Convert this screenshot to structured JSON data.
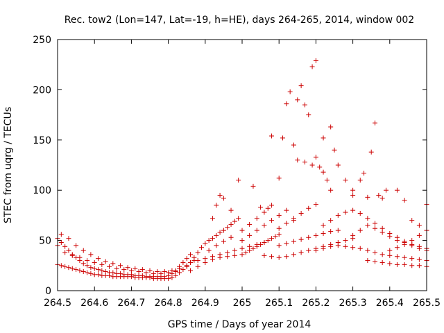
{
  "chart_data": {
    "type": "scatter",
    "title": "Rec. tow2 (Lon=147, Lat=-19, h=HE), days 264-265, 2014, window 002",
    "xlabel": "GPS time / Days of year 2014",
    "ylabel": "STEC from uqrg / TECUs",
    "xlim": [
      264.5,
      265.5
    ],
    "ylim": [
      0,
      250
    ],
    "xticks": [
      "264.5",
      "264.6",
      "264.7",
      "264.8",
      "264.9",
      "265",
      "265.1",
      "265.2",
      "265.3",
      "265.4",
      "265.5"
    ],
    "xtick_values": [
      264.5,
      264.6,
      264.7,
      264.8,
      264.9,
      265.0,
      265.1,
      265.2,
      265.3,
      265.4,
      265.5
    ],
    "yticks": [
      "0",
      "50",
      "100",
      "150",
      "200",
      "250"
    ],
    "ytick_values": [
      0,
      50,
      100,
      150,
      200,
      250
    ],
    "marker": "+",
    "color": "#cc0000",
    "series": [
      {
        "name": "STEC",
        "points": [
          [
            264.5,
            26
          ],
          [
            264.51,
            25
          ],
          [
            264.52,
            24
          ],
          [
            264.53,
            23
          ],
          [
            264.54,
            22
          ],
          [
            264.55,
            21
          ],
          [
            264.56,
            20
          ],
          [
            264.57,
            19
          ],
          [
            264.58,
            18
          ],
          [
            264.59,
            17
          ],
          [
            264.6,
            16
          ],
          [
            264.61,
            16
          ],
          [
            264.62,
            15
          ],
          [
            264.63,
            15
          ],
          [
            264.64,
            15
          ],
          [
            264.65,
            14
          ],
          [
            264.66,
            14
          ],
          [
            264.67,
            14
          ],
          [
            264.68,
            14
          ],
          [
            264.69,
            14
          ],
          [
            264.7,
            14
          ],
          [
            264.71,
            13
          ],
          [
            264.72,
            13
          ],
          [
            264.73,
            13
          ],
          [
            264.74,
            13
          ],
          [
            264.75,
            13
          ],
          [
            264.76,
            12
          ],
          [
            264.77,
            12
          ],
          [
            264.78,
            12
          ],
          [
            264.79,
            12
          ],
          [
            264.8,
            12
          ],
          [
            264.81,
            13
          ],
          [
            264.82,
            15
          ],
          [
            264.83,
            18
          ],
          [
            264.5,
            52
          ],
          [
            264.51,
            48
          ],
          [
            264.52,
            44
          ],
          [
            264.53,
            40
          ],
          [
            264.54,
            36
          ],
          [
            264.55,
            33
          ],
          [
            264.56,
            30
          ],
          [
            264.57,
            27
          ],
          [
            264.58,
            25
          ],
          [
            264.59,
            23
          ],
          [
            264.6,
            22
          ],
          [
            264.61,
            21
          ],
          [
            264.62,
            20
          ],
          [
            264.63,
            19
          ],
          [
            264.64,
            18
          ],
          [
            264.65,
            18
          ],
          [
            264.66,
            17
          ],
          [
            264.67,
            17
          ],
          [
            264.68,
            16
          ],
          [
            264.69,
            16
          ],
          [
            264.7,
            16
          ],
          [
            264.71,
            15
          ],
          [
            264.72,
            15
          ],
          [
            264.73,
            15
          ],
          [
            264.74,
            14
          ],
          [
            264.75,
            14
          ],
          [
            264.76,
            14
          ],
          [
            264.77,
            14
          ],
          [
            264.78,
            14
          ],
          [
            264.79,
            14
          ],
          [
            264.8,
            15
          ],
          [
            264.81,
            17
          ],
          [
            264.82,
            20
          ],
          [
            264.83,
            24
          ],
          [
            264.84,
            28
          ],
          [
            264.85,
            32
          ],
          [
            264.86,
            36
          ],
          [
            264.5,
            45
          ],
          [
            264.51,
            56
          ],
          [
            264.53,
            52
          ],
          [
            264.55,
            45
          ],
          [
            264.57,
            40
          ],
          [
            264.59,
            36
          ],
          [
            264.61,
            32
          ],
          [
            264.63,
            29
          ],
          [
            264.65,
            27
          ],
          [
            264.67,
            25
          ],
          [
            264.69,
            23
          ],
          [
            264.71,
            22
          ],
          [
            264.73,
            21
          ],
          [
            264.75,
            20
          ],
          [
            264.77,
            19
          ],
          [
            264.79,
            19
          ],
          [
            264.81,
            20
          ],
          [
            264.83,
            22
          ],
          [
            264.85,
            25
          ],
          [
            264.87,
            30
          ],
          [
            264.52,
            38
          ],
          [
            264.54,
            35
          ],
          [
            264.56,
            33
          ],
          [
            264.58,
            30
          ],
          [
            264.6,
            28
          ],
          [
            264.62,
            26
          ],
          [
            264.64,
            24
          ],
          [
            264.66,
            22
          ],
          [
            264.68,
            21
          ],
          [
            264.7,
            20
          ],
          [
            264.72,
            19
          ],
          [
            264.74,
            18
          ],
          [
            264.76,
            17
          ],
          [
            264.78,
            17
          ],
          [
            264.8,
            18
          ],
          [
            264.82,
            19
          ],
          [
            264.84,
            21
          ],
          [
            264.85,
            24
          ],
          [
            264.86,
            28
          ],
          [
            264.87,
            33
          ],
          [
            264.88,
            38
          ],
          [
            264.89,
            43
          ],
          [
            264.9,
            47
          ],
          [
            264.91,
            50
          ],
          [
            264.92,
            52
          ],
          [
            264.93,
            55
          ],
          [
            264.94,
            58
          ],
          [
            264.95,
            60
          ],
          [
            264.96,
            63
          ],
          [
            264.97,
            66
          ],
          [
            264.98,
            69
          ],
          [
            264.99,
            72
          ],
          [
            264.88,
            30
          ],
          [
            264.9,
            32
          ],
          [
            264.92,
            34
          ],
          [
            264.94,
            36
          ],
          [
            264.96,
            38
          ],
          [
            264.98,
            40
          ],
          [
            265.0,
            42
          ],
          [
            265.02,
            44
          ],
          [
            265.04,
            46
          ],
          [
            265.06,
            48
          ],
          [
            264.86,
            20
          ],
          [
            264.88,
            24
          ],
          [
            264.9,
            28
          ],
          [
            264.92,
            31
          ],
          [
            264.94,
            33
          ],
          [
            264.96,
            34
          ],
          [
            264.98,
            35
          ],
          [
            264.91,
            40
          ],
          [
            264.93,
            45
          ],
          [
            264.95,
            49
          ],
          [
            264.97,
            53
          ],
          [
            264.92,
            72
          ],
          [
            264.93,
            85
          ],
          [
            264.94,
            95
          ],
          [
            264.95,
            92
          ],
          [
            264.97,
            80
          ],
          [
            264.99,
            110
          ],
          [
            265.03,
            104
          ],
          [
            265.05,
            83
          ],
          [
            265.07,
            82
          ],
          [
            265.08,
            154
          ],
          [
            265.0,
            36
          ],
          [
            265.01,
            38
          ],
          [
            265.02,
            40
          ],
          [
            265.03,
            42
          ],
          [
            265.04,
            44
          ],
          [
            265.05,
            46
          ],
          [
            265.06,
            48
          ],
          [
            265.07,
            50
          ],
          [
            265.08,
            52
          ],
          [
            265.09,
            54
          ],
          [
            265.1,
            56
          ],
          [
            265.0,
            50
          ],
          [
            265.02,
            55
          ],
          [
            265.04,
            60
          ],
          [
            265.06,
            65
          ],
          [
            265.08,
            70
          ],
          [
            265.1,
            75
          ],
          [
            265.12,
            80
          ],
          [
            265.0,
            60
          ],
          [
            265.02,
            66
          ],
          [
            265.04,
            72
          ],
          [
            265.06,
            78
          ],
          [
            265.08,
            85
          ],
          [
            265.1,
            112
          ],
          [
            265.11,
            152
          ],
          [
            265.12,
            186
          ],
          [
            265.13,
            198
          ],
          [
            265.14,
            145
          ],
          [
            265.06,
            35
          ],
          [
            265.08,
            34
          ],
          [
            265.1,
            33
          ],
          [
            265.12,
            34
          ],
          [
            265.14,
            36
          ],
          [
            265.16,
            38
          ],
          [
            265.18,
            40
          ],
          [
            265.2,
            42
          ],
          [
            265.22,
            44
          ],
          [
            265.24,
            46
          ],
          [
            265.26,
            48
          ],
          [
            265.28,
            50
          ],
          [
            265.3,
            52
          ],
          [
            265.1,
            45
          ],
          [
            265.12,
            47
          ],
          [
            265.14,
            49
          ],
          [
            265.16,
            51
          ],
          [
            265.18,
            53
          ],
          [
            265.2,
            55
          ],
          [
            265.22,
            57
          ],
          [
            265.24,
            59
          ],
          [
            265.26,
            60
          ],
          [
            265.1,
            62
          ],
          [
            265.12,
            67
          ],
          [
            265.14,
            72
          ],
          [
            265.16,
            77
          ],
          [
            265.18,
            82
          ],
          [
            265.2,
            86
          ],
          [
            265.14,
            70
          ],
          [
            265.15,
            190
          ],
          [
            265.16,
            204
          ],
          [
            265.17,
            185
          ],
          [
            265.18,
            175
          ],
          [
            265.19,
            223
          ],
          [
            265.2,
            229
          ],
          [
            265.21,
            123
          ],
          [
            265.22,
            118
          ],
          [
            265.23,
            110
          ],
          [
            265.24,
            163
          ],
          [
            265.25,
            140
          ],
          [
            265.15,
            130
          ],
          [
            265.17,
            128
          ],
          [
            265.19,
            125
          ],
          [
            265.2,
            133
          ],
          [
            265.22,
            152
          ],
          [
            265.24,
            100
          ],
          [
            265.26,
            125
          ],
          [
            265.28,
            110
          ],
          [
            265.3,
            100
          ],
          [
            265.2,
            40
          ],
          [
            265.22,
            42
          ],
          [
            265.24,
            44
          ],
          [
            265.26,
            45
          ],
          [
            265.28,
            44
          ],
          [
            265.3,
            43
          ],
          [
            265.32,
            42
          ],
          [
            265.34,
            40
          ],
          [
            265.36,
            38
          ],
          [
            265.38,
            36
          ],
          [
            265.4,
            35
          ],
          [
            265.42,
            34
          ],
          [
            265.44,
            33
          ],
          [
            265.46,
            32
          ],
          [
            265.48,
            31
          ],
          [
            265.5,
            30
          ],
          [
            265.22,
            65
          ],
          [
            265.24,
            70
          ],
          [
            265.26,
            75
          ],
          [
            265.28,
            78
          ],
          [
            265.3,
            80
          ],
          [
            265.32,
            77
          ],
          [
            265.34,
            72
          ],
          [
            265.36,
            67
          ],
          [
            265.38,
            62
          ],
          [
            265.4,
            57
          ],
          [
            265.42,
            53
          ],
          [
            265.44,
            49
          ],
          [
            265.46,
            45
          ],
          [
            265.48,
            42
          ],
          [
            265.5,
            40
          ],
          [
            265.3,
            95
          ],
          [
            265.32,
            110
          ],
          [
            265.33,
            117
          ],
          [
            265.34,
            93
          ],
          [
            265.35,
            138
          ],
          [
            265.36,
            167
          ],
          [
            265.37,
            95
          ],
          [
            265.38,
            92
          ],
          [
            265.39,
            100
          ],
          [
            265.42,
            100
          ],
          [
            265.44,
            90
          ],
          [
            265.46,
            70
          ],
          [
            265.48,
            65
          ],
          [
            265.5,
            86
          ],
          [
            265.3,
            55
          ],
          [
            265.32,
            60
          ],
          [
            265.34,
            65
          ],
          [
            265.36,
            62
          ],
          [
            265.38,
            58
          ],
          [
            265.4,
            54
          ],
          [
            265.42,
            50
          ],
          [
            265.44,
            48
          ],
          [
            265.46,
            46
          ],
          [
            265.48,
            44
          ],
          [
            265.5,
            42
          ],
          [
            265.34,
            30
          ],
          [
            265.36,
            29
          ],
          [
            265.38,
            28
          ],
          [
            265.4,
            27
          ],
          [
            265.42,
            26
          ],
          [
            265.44,
            26
          ],
          [
            265.46,
            25
          ],
          [
            265.48,
            25
          ],
          [
            265.5,
            24
          ],
          [
            265.4,
            40
          ],
          [
            265.42,
            43
          ],
          [
            265.44,
            46
          ],
          [
            265.46,
            50
          ],
          [
            265.48,
            55
          ],
          [
            265.5,
            60
          ]
        ]
      }
    ]
  }
}
